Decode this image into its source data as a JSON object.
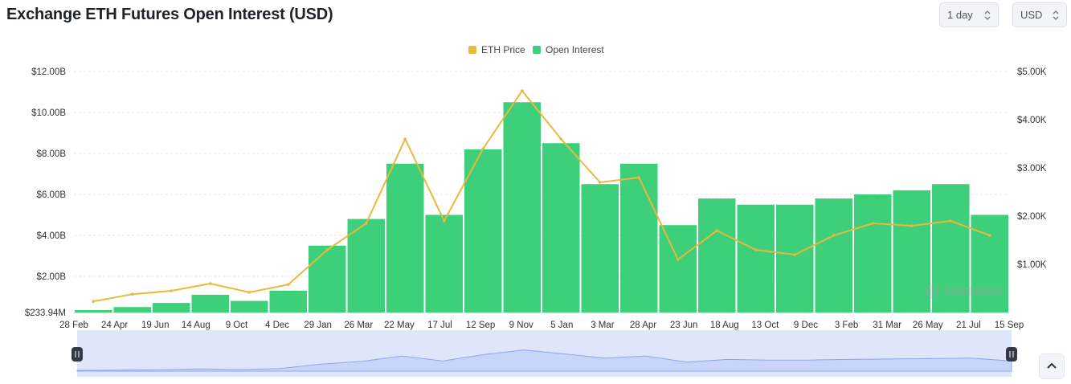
{
  "header": {
    "title": "Exchange ETH Futures Open Interest (USD)",
    "interval_select": "1 day",
    "currency_select": "USD"
  },
  "colors": {
    "open_interest": "#3ecf7a",
    "eth_price": "#e8b93a",
    "navigator_fill": "#d6defb",
    "navigator_line": "#8fa6ee"
  },
  "icons": {
    "select_chevron": "chevron-up-down-icon",
    "scroll_top": "chevron-up-icon",
    "watermark": "coinglass-logo"
  },
  "chart_data": {
    "type": "bar",
    "title": "Exchange ETH Futures Open Interest (USD)",
    "legend": {
      "position": "top-center",
      "entries": [
        "ETH Price",
        "Open Interest"
      ]
    },
    "grid": true,
    "x_tick_labels": [
      "28 Feb",
      "24 Apr",
      "19 Jun",
      "14 Aug",
      "9 Oct",
      "4 Dec",
      "29 Jan",
      "26 Mar",
      "22 May",
      "17 Jul",
      "12 Sep",
      "9 Nov",
      "5 Jan",
      "3 Mar",
      "28 Apr",
      "23 Jun",
      "18 Aug",
      "13 Oct",
      "9 Dec",
      "3 Feb",
      "31 Mar",
      "26 May",
      "21 Jul",
      "15 Sep"
    ],
    "y_left": {
      "ticks": [
        "$233.94M",
        "$2.00B",
        "$4.00B",
        "$6.00B",
        "$8.00B",
        "$10.00B",
        "$12.00B"
      ],
      "min": 0.23394,
      "max": 12,
      "unit": "USD billions"
    },
    "y_right": {
      "ticks": [
        "$1.00K",
        "$2.00K",
        "$3.00K",
        "$4.00K",
        "$5.00K"
      ],
      "max": 5000,
      "unit": "USD"
    },
    "categories": [
      "28 Feb",
      "24 Apr",
      "19 Jun",
      "14 Aug",
      "9 Oct",
      "4 Dec",
      "29 Jan",
      "26 Mar",
      "22 May",
      "17 Jul",
      "12 Sep",
      "9 Nov",
      "5 Jan",
      "3 Mar",
      "28 Apr",
      "23 Jun",
      "18 Aug",
      "13 Oct",
      "9 Dec",
      "3 Feb",
      "31 Mar",
      "26 May",
      "21 Jul",
      "15 Sep"
    ],
    "series": [
      {
        "name": "Open Interest",
        "axis": "left",
        "type": "bar",
        "values": [
          0.35,
          0.5,
          0.7,
          1.1,
          0.8,
          1.3,
          3.5,
          4.8,
          7.5,
          5.0,
          8.2,
          10.5,
          8.5,
          6.5,
          7.5,
          4.5,
          5.8,
          5.5,
          5.5,
          5.8,
          6.0,
          6.2,
          6.5,
          5.0
        ]
      },
      {
        "name": "ETH Price",
        "axis": "right",
        "type": "line",
        "values": [
          230,
          380,
          450,
          600,
          420,
          580,
          1300,
          1850,
          3600,
          1900,
          3400,
          4600,
          3600,
          2700,
          2800,
          1100,
          1700,
          1300,
          1200,
          1600,
          1850,
          1800,
          1900,
          1600
        ]
      }
    ]
  }
}
